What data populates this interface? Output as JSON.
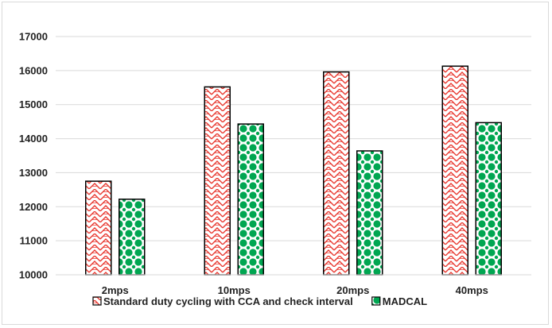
{
  "chart_data": {
    "type": "bar",
    "title": "",
    "xlabel": "",
    "ylabel": "",
    "categories": [
      "2mps",
      "10mps",
      "20mps",
      "40mps"
    ],
    "series": [
      {
        "name": "Standard duty cycling with CCA and check interval",
        "values": [
          12750,
          15520,
          15960,
          16130
        ],
        "color": "#e8382f",
        "pattern": "red-zigzag"
      },
      {
        "name": "MADCAL",
        "values": [
          12220,
          14430,
          13640,
          14470
        ],
        "color": "#00a651",
        "pattern": "green-dots"
      }
    ],
    "ylim": [
      10000,
      17000
    ],
    "yticks": [
      10000,
      11000,
      12000,
      13000,
      14000,
      15000,
      16000,
      17000
    ],
    "grid": true,
    "legend_position": "bottom"
  }
}
